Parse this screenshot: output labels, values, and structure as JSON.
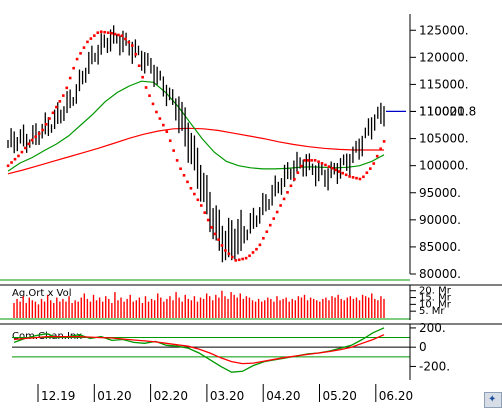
{
  "chart_data": [
    {
      "type": "line",
      "panel": "price",
      "y_ticks": [
        "125000.",
        "120000.",
        "115000.",
        "110000.",
        "105000.",
        "100000.",
        "95000.",
        "90000.",
        "85000.",
        "80000."
      ],
      "y_tick_values": [
        125000,
        120000,
        115000,
        110000,
        105000,
        100000,
        95000,
        90000,
        85000,
        80000
      ],
      "ylim": [
        80000,
        128000
      ],
      "last_value_label": "110021.8",
      "last_value": 110021.8,
      "x_ticks": [
        "12.19",
        "01.20",
        "02.20",
        "03.20",
        "04.20",
        "05.20",
        "06.20"
      ],
      "colors": {
        "price_bars": "#000000",
        "sar_dots": "#ff0000",
        "ma_short": "#009900",
        "ma_long": "#ff0000",
        "last_value_line": "#0000cc"
      },
      "series": [
        {
          "values": [
            104000,
            105000,
            104600,
            106500,
            108000,
            110500,
            113500,
            118500,
            121500,
            123500,
            123000,
            121500,
            119500,
            117000,
            113500,
            110000,
            104000,
            97000,
            90000,
            85500,
            86500,
            88000,
            91000,
            94000,
            97000,
            99500,
            100500,
            99000,
            98000,
            99500,
            101000,
            104000,
            108000,
            110021.8
          ]
        },
        {
          "values": [
            99000,
            100500,
            101500,
            102800,
            104000,
            105500,
            107500,
            109500,
            111800,
            113500,
            114700,
            115600,
            115400,
            113500,
            111000,
            108000,
            105000,
            102500,
            100800,
            100000,
            99600,
            99400,
            99400,
            99500,
            99700,
            99800,
            99700,
            99600,
            99700,
            100000,
            100800,
            102000
          ]
        },
        {
          "values": [
            98500,
            99200,
            100000,
            100800,
            101600,
            102400,
            103200,
            104100,
            105000,
            105800,
            106400,
            106800,
            106900,
            106800,
            106500,
            106000,
            105500,
            105000,
            104400,
            103900,
            103500,
            103200,
            103000,
            102900,
            102900,
            102900
          ]
        }
      ],
      "sar": [
        100000,
        102000,
        104500,
        106500,
        110000,
        113500,
        119500,
        123000,
        124800,
        124500,
        124000,
        122000,
        115000,
        110000,
        106000,
        100000,
        96000,
        92500,
        88000,
        84500,
        82500,
        83000,
        85000,
        89000,
        93000,
        97000,
        101000,
        101000,
        100000,
        99000,
        98000,
        97500,
        100000,
        104500
      ]
    },
    {
      "type": "bar",
      "panel": "volume",
      "title": "Ag.Ort x Vol",
      "y_ticks": [
        "20. Mr",
        "15. Mr",
        "10. Mr",
        "5. Mr"
      ],
      "y_tick_values": [
        20,
        15,
        10,
        5
      ],
      "ylim": [
        0,
        22
      ],
      "colors": {
        "bars": "#ff0000",
        "baseline": "#009900"
      },
      "values": [
        11,
        14,
        12,
        16,
        11,
        15,
        13,
        12,
        10,
        14,
        12,
        17,
        13,
        11,
        15,
        12,
        14,
        12,
        16,
        11,
        13,
        12,
        15,
        18,
        14,
        12,
        17,
        13,
        15,
        12,
        16,
        14,
        11,
        19,
        13,
        15,
        12,
        14,
        17,
        12,
        13,
        15,
        11,
        16,
        12,
        14,
        13,
        18,
        15,
        12,
        14,
        16,
        13,
        19,
        15,
        12,
        17,
        14,
        13,
        16,
        12,
        15,
        14,
        18,
        16,
        13,
        17,
        15,
        20,
        16,
        14,
        19,
        17,
        15,
        18,
        14,
        16,
        15,
        13,
        12,
        14,
        12,
        13,
        15,
        14,
        12,
        16,
        13,
        14,
        15,
        12,
        14,
        13,
        16,
        15,
        17,
        13,
        15,
        14,
        13,
        12,
        14,
        15,
        13,
        16,
        15,
        17,
        14,
        13,
        15,
        16,
        14,
        15,
        13,
        17,
        16,
        15,
        18,
        14,
        13,
        16,
        14
      ]
    },
    {
      "type": "line",
      "panel": "oscillator",
      "title": "Com.Chan.Inx",
      "y_ticks": [
        "200.",
        "0",
        "-200."
      ],
      "y_tick_values": [
        200,
        0,
        -200
      ],
      "ylim": [
        -320,
        220
      ],
      "colors": {
        "cci": "#009900",
        "signal": "#ff0000",
        "zero_line": "#000000",
        "bounds": "#009900"
      },
      "series": [
        {
          "values": [
            50,
            90,
            120,
            140,
            100,
            110,
            130,
            90,
            110,
            70,
            80,
            50,
            40,
            60,
            20,
            10,
            -10,
            -60,
            -130,
            -200,
            -260,
            -250,
            -190,
            -150,
            -130,
            -110,
            -90,
            -70,
            -60,
            -40,
            -10,
            20,
            80,
            150,
            200
          ]
        },
        {
          "values": [
            80,
            90,
            100,
            110,
            110,
            110,
            110,
            105,
            100,
            95,
            85,
            75,
            65,
            55,
            40,
            25,
            10,
            -20,
            -60,
            -110,
            -150,
            -170,
            -165,
            -145,
            -125,
            -105,
            -90,
            -75,
            -60,
            -45,
            -25,
            0,
            40,
            80,
            130
          ]
        }
      ]
    }
  ]
}
